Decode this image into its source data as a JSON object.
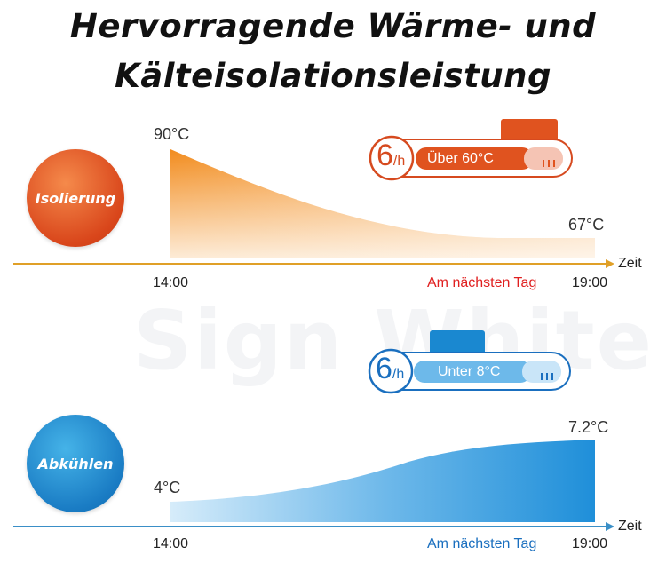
{
  "title": {
    "line1": "Hervorragende Wärme- und",
    "line2": "Kälteisolationsleistung"
  },
  "watermark": "Sign White",
  "panels": {
    "top": {
      "circle_label": "Isolierung",
      "badge_hours": "6",
      "badge_unit": "/h",
      "badge_text": "Über 60°C",
      "start_temp": "90°C",
      "end_temp": "67°C",
      "axis_label": "Zeit",
      "time_start": "14:00",
      "next_day": "Am nächsten Tag",
      "time_end": "19:00",
      "color": "#e0531f",
      "next_day_color": "#e02020"
    },
    "bottom": {
      "circle_label": "Abkühlen",
      "badge_hours": "6",
      "badge_unit": "/h",
      "badge_text": "Unter 8°C",
      "start_temp": "4°C",
      "end_temp": "7.2°C",
      "axis_label": "Zeit",
      "time_start": "14:00",
      "next_day": "Am nächsten Tag",
      "time_end": "19:00",
      "color": "#1a88d0",
      "next_day_color": "#1a6fbf"
    }
  }
}
